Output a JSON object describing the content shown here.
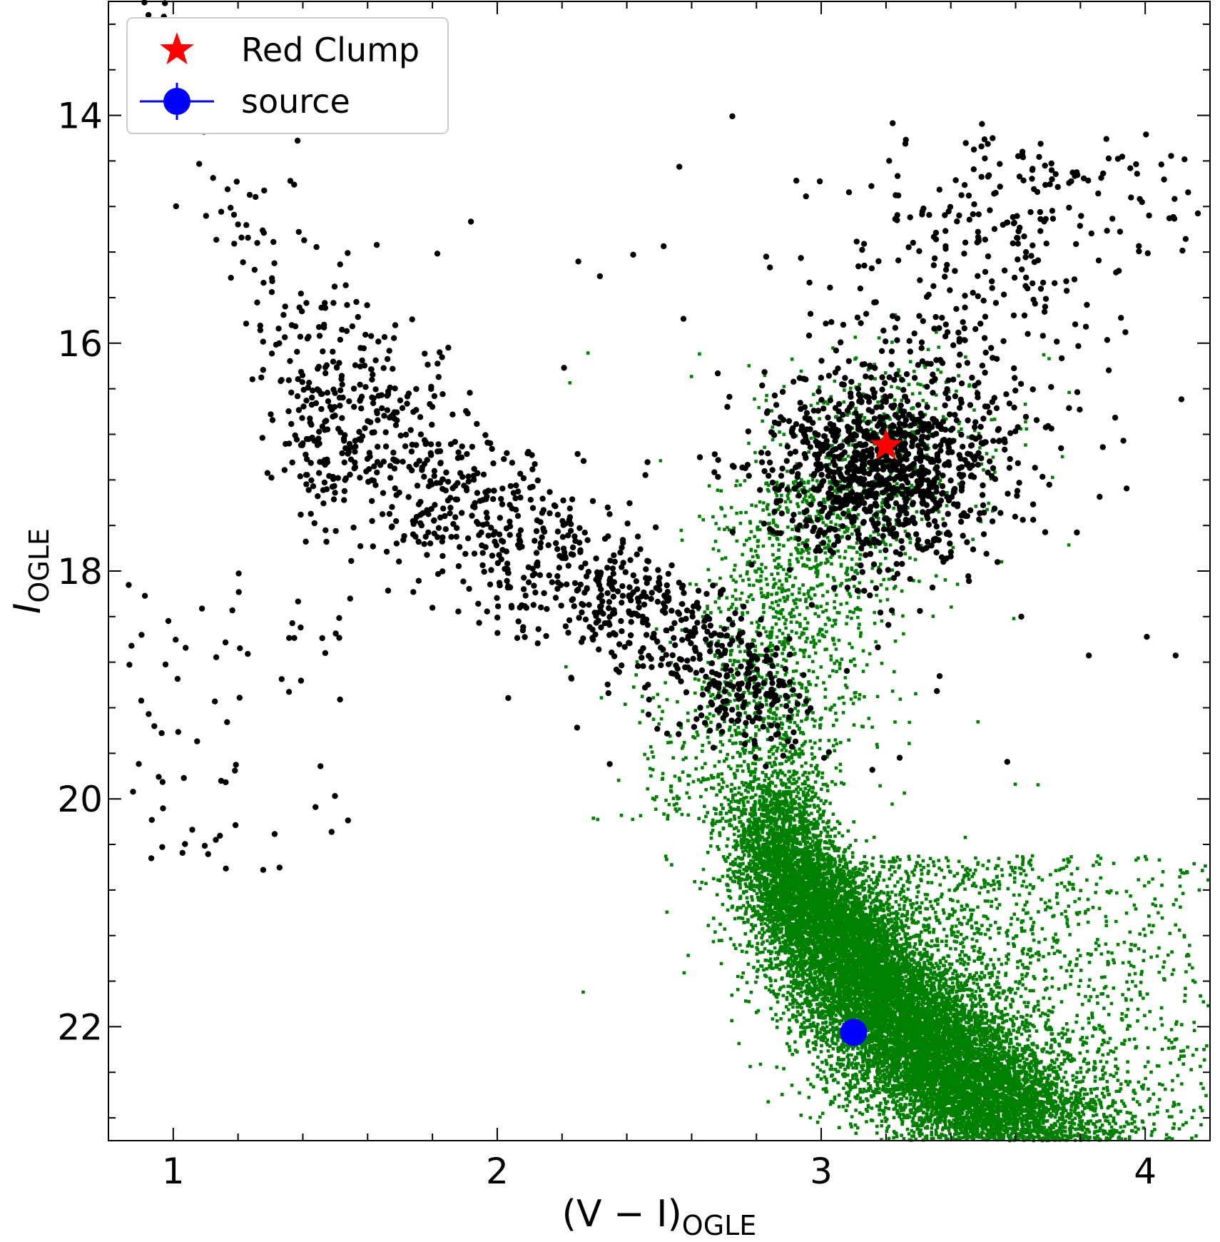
{
  "chart_data": {
    "type": "scatter",
    "xlabel": {
      "main": "(V − I)",
      "sub": "OGLE"
    },
    "ylabel": {
      "main": "I",
      "sub": "OGLE"
    },
    "xlim": [
      0.8,
      4.2
    ],
    "ylim": [
      23.0,
      13.0
    ],
    "y_inverted": true,
    "grid": false,
    "ticks_inward": true,
    "x_major_ticks": [
      1,
      2,
      3,
      4
    ],
    "x_minor_step": 0.2,
    "y_major_ticks": [
      14,
      16,
      18,
      20,
      22
    ],
    "y_minor_step": 0.4,
    "legend": {
      "placement": "top-left",
      "entries": [
        {
          "label": "Red Clump",
          "marker": "star",
          "color": "#ff0000"
        },
        {
          "label": "source",
          "marker": "circle-errorbar",
          "color": "#0000ff"
        }
      ]
    },
    "series": [
      {
        "role": "field-stars-hst",
        "color": "#008000",
        "marker": "dot"
      },
      {
        "role": "field-stars-ogle",
        "color": "#000000",
        "marker": "dot"
      },
      {
        "role": "red-clump",
        "x": [
          3.2
        ],
        "y": [
          16.9
        ],
        "color": "#ff0000",
        "marker": "star"
      },
      {
        "role": "source",
        "x": [
          3.1
        ],
        "y": [
          22.05
        ],
        "color": "#0000ff",
        "marker": "circle"
      }
    ],
    "distributions": {
      "black_giant_branch": {
        "x_from": 1.35,
        "x_to": 2.9,
        "y_from": 16.4,
        "y_to": 19.2,
        "scatter": 0.45
      },
      "black_red_clump": {
        "cx": 3.2,
        "cy": 16.9,
        "sx": 0.18,
        "sy": 0.35
      },
      "green_main_sequence": {
        "top": [
          2.87,
          20.2
        ],
        "bottom": [
          3.6,
          23.0
        ],
        "width": 0.07
      }
    }
  }
}
